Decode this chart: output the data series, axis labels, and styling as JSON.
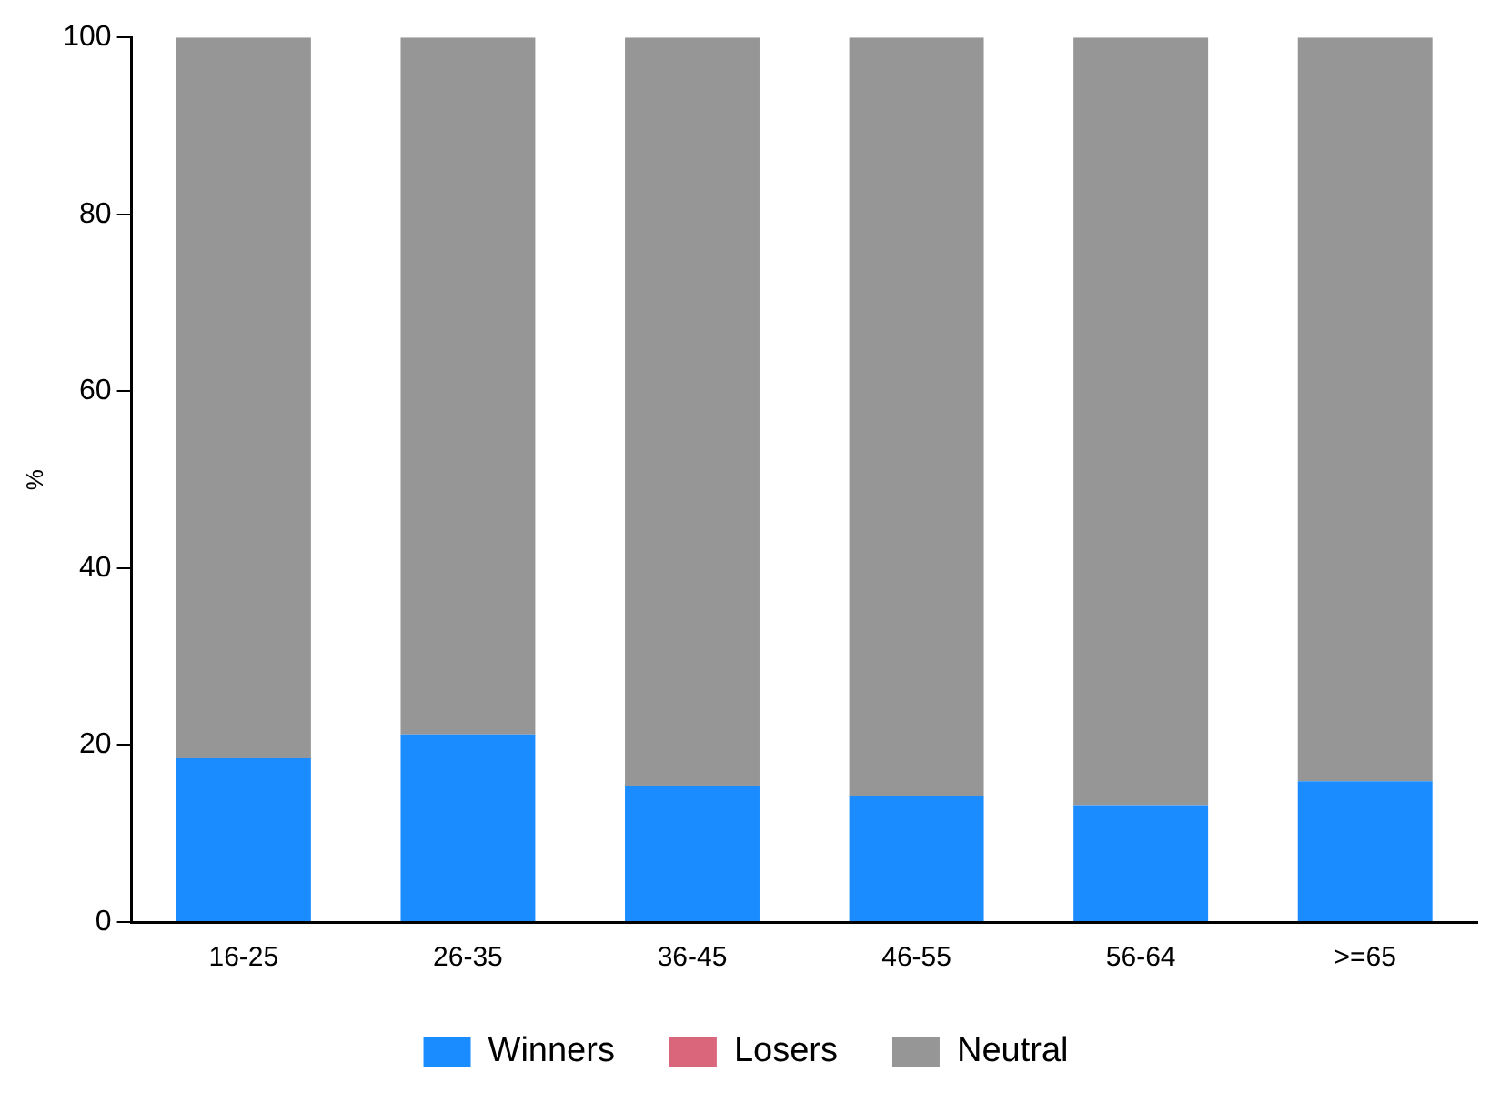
{
  "chart_data": {
    "type": "bar",
    "stacked": true,
    "ylabel": "%",
    "categories": [
      "16-25",
      "26-35",
      "36-45",
      "46-55",
      "56-64",
      ">=65"
    ],
    "series": [
      {
        "name": "Winners",
        "color": "#1a8cff",
        "values": [
          18.5,
          21.2,
          15.4,
          14.3,
          13.2,
          15.9
        ]
      },
      {
        "name": "Losers",
        "color": "#d9667a",
        "values": [
          0,
          0,
          0,
          0,
          0,
          0
        ]
      },
      {
        "name": "Neutral",
        "color": "#969696",
        "values": [
          81.5,
          78.8,
          84.6,
          85.7,
          86.8,
          84.1
        ]
      }
    ],
    "ylim": [
      0,
      100
    ],
    "yticks": [
      0,
      20,
      40,
      60,
      80,
      100
    ],
    "grid": false,
    "legend": "bottom"
  }
}
